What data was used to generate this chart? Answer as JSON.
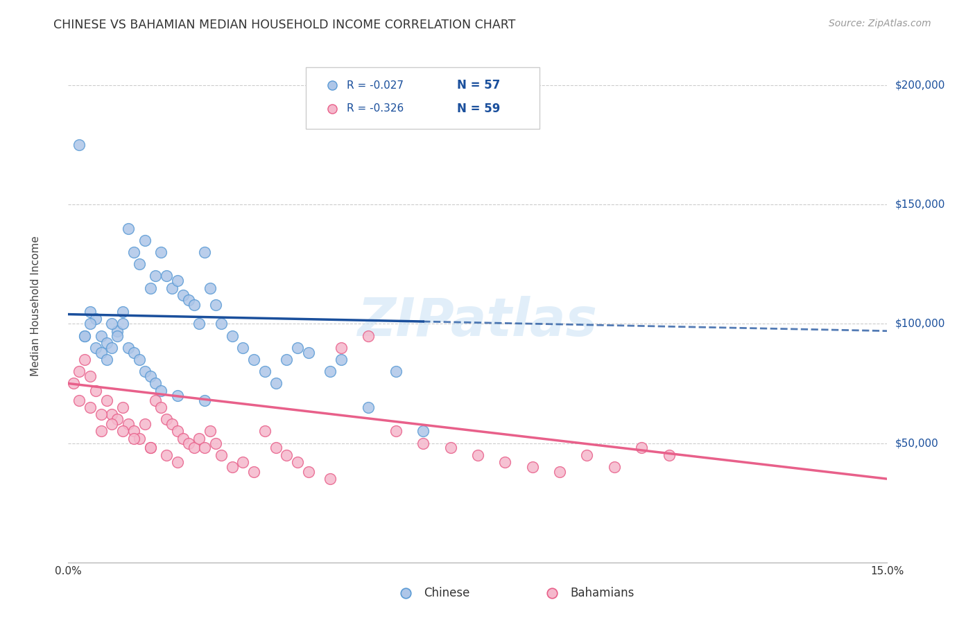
{
  "title": "CHINESE VS BAHAMIAN MEDIAN HOUSEHOLD INCOME CORRELATION CHART",
  "source": "Source: ZipAtlas.com",
  "ylabel": "Median Household Income",
  "watermark": "ZIPatlas",
  "yticks": [
    50000,
    100000,
    150000,
    200000
  ],
  "ytick_labels": [
    "$50,000",
    "$100,000",
    "$150,000",
    "$200,000"
  ],
  "xlim": [
    0.0,
    0.15
  ],
  "ylim": [
    0,
    215000
  ],
  "chinese_color": "#aec6e8",
  "chinese_edge_color": "#5b9bd5",
  "bahamian_color": "#f5b8cc",
  "bahamian_edge_color": "#e8608a",
  "trendline_chinese_color": "#1a4f9c",
  "trendline_bahamian_color": "#e8608a",
  "grid_color": "#cccccc",
  "background_color": "#ffffff",
  "legend_R_color": "#1a4f9c",
  "legend_R_chinese": "R = -0.027",
  "legend_N_chinese": "N = 57",
  "legend_R_bahamian": "R = -0.326",
  "legend_N_bahamian": "N = 59",
  "chinese_x": [
    0.002,
    0.003,
    0.004,
    0.005,
    0.006,
    0.007,
    0.008,
    0.009,
    0.01,
    0.011,
    0.012,
    0.013,
    0.014,
    0.015,
    0.016,
    0.017,
    0.018,
    0.019,
    0.02,
    0.021,
    0.022,
    0.023,
    0.024,
    0.025,
    0.026,
    0.027,
    0.028,
    0.03,
    0.032,
    0.034,
    0.036,
    0.038,
    0.04,
    0.042,
    0.044,
    0.048,
    0.05,
    0.055,
    0.06,
    0.065,
    0.003,
    0.004,
    0.005,
    0.006,
    0.007,
    0.008,
    0.009,
    0.01,
    0.011,
    0.012,
    0.013,
    0.014,
    0.015,
    0.016,
    0.017,
    0.02,
    0.025
  ],
  "chinese_y": [
    175000,
    95000,
    105000,
    102000,
    95000,
    92000,
    90000,
    97000,
    100000,
    140000,
    130000,
    125000,
    135000,
    115000,
    120000,
    130000,
    120000,
    115000,
    118000,
    112000,
    110000,
    108000,
    100000,
    130000,
    115000,
    108000,
    100000,
    95000,
    90000,
    85000,
    80000,
    75000,
    85000,
    90000,
    88000,
    80000,
    85000,
    65000,
    80000,
    55000,
    95000,
    100000,
    90000,
    88000,
    85000,
    100000,
    95000,
    105000,
    90000,
    88000,
    85000,
    80000,
    78000,
    75000,
    72000,
    70000,
    68000
  ],
  "bahamian_x": [
    0.001,
    0.002,
    0.003,
    0.004,
    0.005,
    0.006,
    0.007,
    0.008,
    0.009,
    0.01,
    0.011,
    0.012,
    0.013,
    0.014,
    0.015,
    0.016,
    0.017,
    0.018,
    0.019,
    0.02,
    0.021,
    0.022,
    0.023,
    0.024,
    0.025,
    0.026,
    0.027,
    0.028,
    0.03,
    0.032,
    0.034,
    0.036,
    0.038,
    0.04,
    0.042,
    0.044,
    0.048,
    0.05,
    0.055,
    0.06,
    0.065,
    0.07,
    0.075,
    0.08,
    0.085,
    0.09,
    0.095,
    0.1,
    0.105,
    0.11,
    0.002,
    0.004,
    0.006,
    0.008,
    0.01,
    0.012,
    0.015,
    0.018,
    0.02
  ],
  "bahamian_y": [
    75000,
    80000,
    85000,
    78000,
    72000,
    55000,
    68000,
    62000,
    60000,
    65000,
    58000,
    55000,
    52000,
    58000,
    48000,
    68000,
    65000,
    60000,
    58000,
    55000,
    52000,
    50000,
    48000,
    52000,
    48000,
    55000,
    50000,
    45000,
    40000,
    42000,
    38000,
    55000,
    48000,
    45000,
    42000,
    38000,
    35000,
    90000,
    95000,
    55000,
    50000,
    48000,
    45000,
    42000,
    40000,
    38000,
    45000,
    40000,
    48000,
    45000,
    68000,
    65000,
    62000,
    58000,
    55000,
    52000,
    48000,
    45000,
    42000
  ],
  "trendline_chinese_x0": 0.0,
  "trendline_chinese_y0": 104000,
  "trendline_chinese_x1": 0.15,
  "trendline_chinese_y1": 97000,
  "trendline_chinese_solid_end": 0.065,
  "trendline_bahamian_x0": 0.0,
  "trendline_bahamian_y0": 75000,
  "trendline_bahamian_x1": 0.15,
  "trendline_bahamian_y1": 35000
}
